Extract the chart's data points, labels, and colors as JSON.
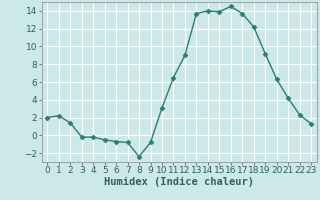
{
  "x": [
    0,
    1,
    2,
    3,
    4,
    5,
    6,
    7,
    8,
    9,
    10,
    11,
    12,
    13,
    14,
    15,
    16,
    17,
    18,
    19,
    20,
    21,
    22,
    23
  ],
  "y": [
    2,
    2.2,
    1.4,
    -0.2,
    -0.2,
    -0.5,
    -0.7,
    -0.8,
    -2.4,
    -0.8,
    3.1,
    6.5,
    9.0,
    13.7,
    14.0,
    13.9,
    14.5,
    13.7,
    12.2,
    9.2,
    6.3,
    4.2,
    2.3,
    1.3
  ],
  "line_color": "#2e7d6e",
  "marker": "D",
  "marker_size": 2.5,
  "bg_color": "#cde8e8",
  "grid_color": "#ffffff",
  "xlabel": "Humidex (Indice chaleur)",
  "ylim": [
    -3,
    15
  ],
  "yticks": [
    -2,
    0,
    2,
    4,
    6,
    8,
    10,
    12,
    14
  ],
  "xticks": [
    0,
    1,
    2,
    3,
    4,
    5,
    6,
    7,
    8,
    9,
    10,
    11,
    12,
    13,
    14,
    15,
    16,
    17,
    18,
    19,
    20,
    21,
    22,
    23
  ],
  "xlabel_fontsize": 7.5,
  "tick_fontsize": 6.5
}
